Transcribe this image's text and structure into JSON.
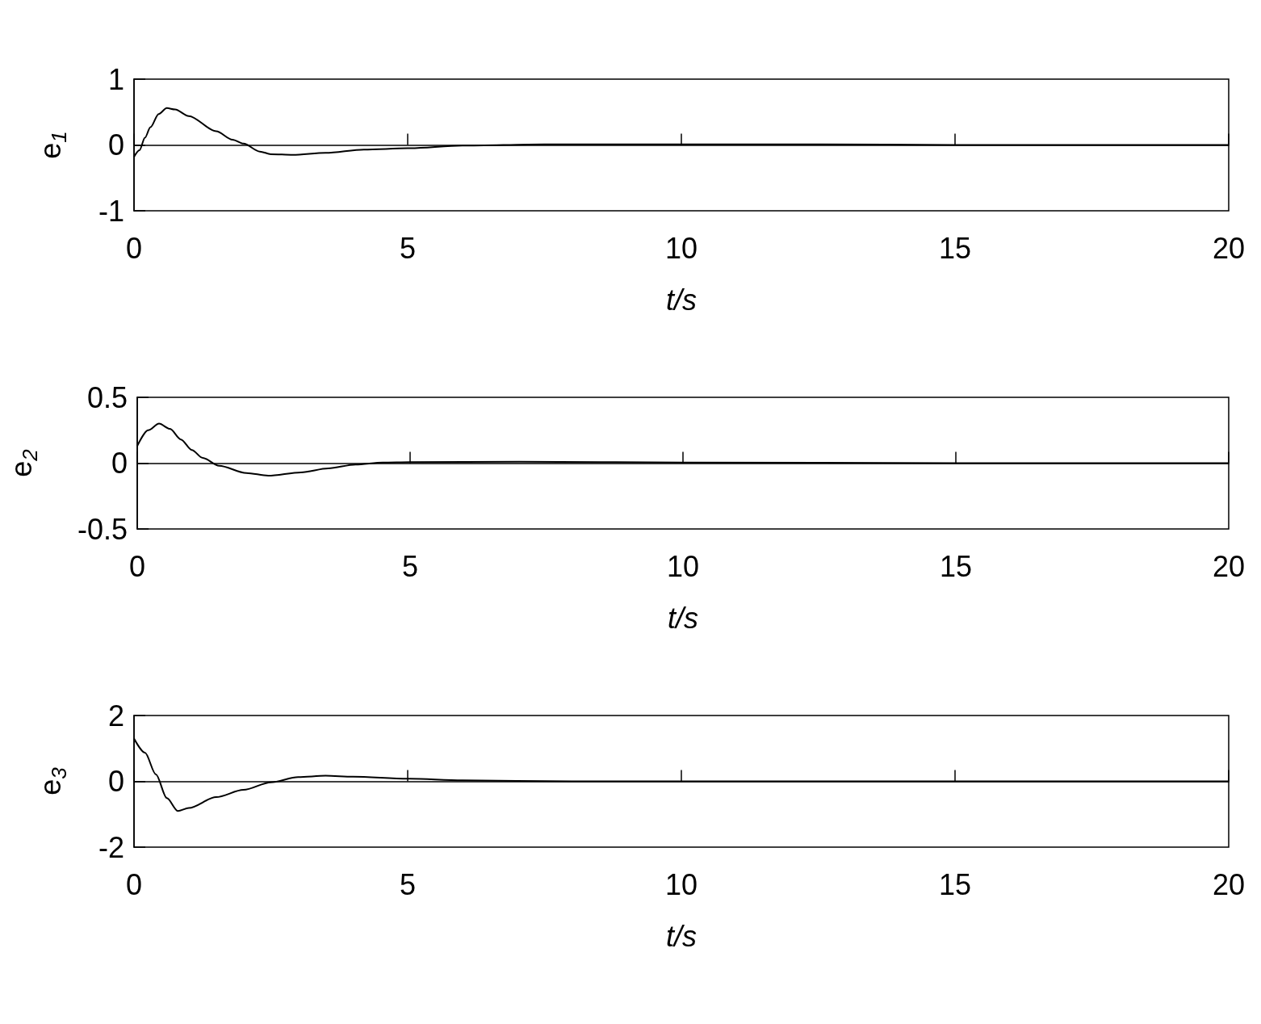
{
  "chart_data": [
    {
      "type": "line",
      "xlabel": "t/s",
      "ylabel": "e$_{1}$",
      "color": "#000000",
      "xlim": [
        0,
        20
      ],
      "xticks": [
        0,
        5,
        10,
        15,
        20
      ],
      "ylim": [
        -1,
        1
      ],
      "yticks": [
        -1,
        0,
        1
      ],
      "x": [
        0,
        0.1,
        0.2,
        0.3,
        0.45,
        0.6,
        0.75,
        1,
        1.5,
        1.8,
        2,
        2.3,
        2.5,
        2.9,
        3.5,
        4.2,
        5,
        6,
        7.5,
        10,
        12.5,
        15,
        20
      ],
      "values": [
        -0.18,
        -0.08,
        0.11,
        0.27,
        0.47,
        0.56,
        0.54,
        0.44,
        0.21,
        0.08,
        0.02,
        -0.1,
        -0.14,
        -0.15,
        -0.12,
        -0.07,
        -0.05,
        -0.01,
        0.01,
        0.01,
        0.01,
        0,
        0
      ]
    },
    {
      "type": "line",
      "xlabel": "t/s",
      "ylabel": "e$_{2}$",
      "color": "#000000",
      "xlim": [
        0,
        20
      ],
      "xticks": [
        0,
        5,
        10,
        15,
        20
      ],
      "ylim": [
        -0.5,
        0.5
      ],
      "yticks": [
        -0.5,
        0,
        0.5
      ],
      "x": [
        0,
        0.2,
        0.4,
        0.6,
        0.8,
        1,
        1.2,
        1.5,
        2,
        2.4,
        3,
        3.5,
        4,
        4.5,
        5,
        7,
        10,
        15,
        20
      ],
      "values": [
        0.13,
        0.25,
        0.3,
        0.26,
        0.18,
        0.1,
        0.04,
        -0.02,
        -0.075,
        -0.095,
        -0.07,
        -0.04,
        -0.01,
        0.005,
        0.008,
        0.01,
        0.005,
        0,
        0
      ]
    },
    {
      "type": "line",
      "xlabel": "t/s",
      "ylabel": "e$_{3}$",
      "color": "#000000",
      "xlim": [
        0,
        20
      ],
      "xticks": [
        0,
        5,
        10,
        15,
        20
      ],
      "ylim": [
        -2,
        2
      ],
      "yticks": [
        -2,
        0,
        2
      ],
      "x": [
        0,
        0.2,
        0.4,
        0.6,
        0.8,
        1,
        1.5,
        2,
        2.5,
        3,
        3.5,
        4,
        5,
        6,
        8,
        12,
        20
      ],
      "values": [
        1.3,
        0.87,
        0.21,
        -0.51,
        -0.9,
        -0.81,
        -0.48,
        -0.26,
        -0.03,
        0.13,
        0.17,
        0.14,
        0.08,
        0.03,
        0,
        0,
        0
      ]
    }
  ]
}
